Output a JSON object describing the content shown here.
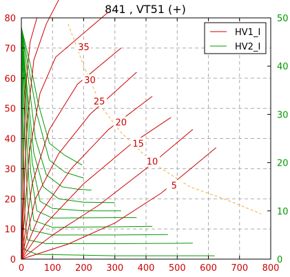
{
  "chart_data": {
    "type": "line",
    "title": "841 , VT51  (+)",
    "xlim": [
      0,
      800
    ],
    "ylim_left": [
      0,
      80
    ],
    "ylim_right": [
      0,
      50
    ],
    "x_ticks": [
      "0",
      "100",
      "200",
      "300",
      "400",
      "500",
      "600",
      "700",
      "800"
    ],
    "y_left_ticks": [
      "0",
      "10",
      "20",
      "30",
      "40",
      "50",
      "60",
      "70",
      "80"
    ],
    "y_right_ticks": [
      "0",
      "10",
      "20",
      "30",
      "40",
      "50"
    ],
    "grid": true,
    "legend_position": "top-right",
    "legend": [
      {
        "label": "HV1_I",
        "color": "#cc0000"
      },
      {
        "label": "HV2_I",
        "color": "#009900"
      }
    ],
    "colors": {
      "hv1": "#cc0000",
      "hv2": "#009900",
      "envelope": "#f0b040",
      "grid": "#aaaaaa"
    },
    "hv1_curves": [
      [
        [
          0,
          0
        ],
        [
          150,
          5
        ],
        [
          300,
          12
        ],
        [
          450,
          22
        ],
        [
          625,
          37
        ]
      ],
      [
        [
          0,
          0
        ],
        [
          100,
          8
        ],
        [
          250,
          18
        ],
        [
          400,
          30
        ],
        [
          550,
          43
        ]
      ],
      [
        [
          0,
          0
        ],
        [
          80,
          12
        ],
        [
          200,
          25
        ],
        [
          350,
          38
        ],
        [
          480,
          47
        ]
      ],
      [
        [
          0,
          0
        ],
        [
          60,
          15
        ],
        [
          160,
          30
        ],
        [
          280,
          43
        ],
        [
          420,
          54
        ]
      ],
      [
        [
          0,
          0
        ],
        [
          45,
          20
        ],
        [
          120,
          35
        ],
        [
          220,
          48
        ],
        [
          370,
          62
        ]
      ],
      [
        [
          0,
          0
        ],
        [
          35,
          25
        ],
        [
          90,
          43
        ],
        [
          180,
          58
        ],
        [
          320,
          70
        ]
      ],
      [
        [
          0,
          0
        ],
        [
          25,
          35
        ],
        [
          60,
          55
        ],
        [
          110,
          67
        ],
        [
          280,
          82
        ]
      ],
      [
        [
          0,
          0
        ],
        [
          18,
          45
        ],
        [
          40,
          66
        ],
        [
          80,
          78
        ],
        [
          120,
          86
        ]
      ],
      [
        [
          0,
          0
        ],
        [
          12,
          55
        ],
        [
          28,
          72
        ],
        [
          50,
          80
        ]
      ]
    ],
    "hv2_curves": [
      [
        [
          0,
          48
        ],
        [
          4,
          20
        ],
        [
          6,
          5
        ],
        [
          10,
          2
        ],
        [
          50,
          1
        ],
        [
          300,
          0.7
        ],
        [
          620,
          0.7
        ]
      ],
      [
        [
          0,
          48
        ],
        [
          8,
          20
        ],
        [
          12,
          8
        ],
        [
          20,
          4
        ],
        [
          80,
          3.2
        ],
        [
          300,
          3.2
        ],
        [
          550,
          3.3
        ]
      ],
      [
        [
          0,
          48
        ],
        [
          12,
          25
        ],
        [
          20,
          12
        ],
        [
          30,
          6
        ],
        [
          100,
          5
        ],
        [
          300,
          5
        ],
        [
          470,
          5.1
        ]
      ],
      [
        [
          0,
          48
        ],
        [
          15,
          28
        ],
        [
          25,
          15
        ],
        [
          40,
          8
        ],
        [
          100,
          6.6
        ],
        [
          300,
          6.7
        ],
        [
          420,
          6.8
        ]
      ],
      [
        [
          0,
          48
        ],
        [
          18,
          30
        ],
        [
          30,
          18
        ],
        [
          50,
          10
        ],
        [
          100,
          8.5
        ],
        [
          300,
          8.6
        ],
        [
          370,
          8.6
        ]
      ],
      [
        [
          0,
          48
        ],
        [
          20,
          32
        ],
        [
          35,
          20
        ],
        [
          60,
          12
        ],
        [
          100,
          10.5
        ],
        [
          200,
          10
        ],
        [
          320,
          10
        ]
      ],
      [
        [
          0,
          48
        ],
        [
          22,
          33
        ],
        [
          40,
          22
        ],
        [
          70,
          15
        ],
        [
          120,
          12.5
        ],
        [
          200,
          11.8
        ],
        [
          300,
          11.7
        ]
      ],
      [
        [
          0,
          48
        ],
        [
          25,
          36
        ],
        [
          45,
          25
        ],
        [
          80,
          17.5
        ],
        [
          130,
          15
        ],
        [
          180,
          14.5
        ],
        [
          225,
          14.3
        ]
      ],
      [
        [
          0,
          48
        ],
        [
          28,
          38
        ],
        [
          50,
          30
        ],
        [
          90,
          20.5
        ],
        [
          140,
          18
        ],
        [
          200,
          16.8
        ]
      ],
      [
        [
          0,
          48
        ],
        [
          30,
          40
        ],
        [
          55,
          32
        ],
        [
          90,
          24
        ],
        [
          140,
          21.5
        ],
        [
          195,
          19.5
        ]
      ]
    ],
    "envelope": [
      [
        150,
        78
      ],
      [
        200,
        64
      ],
      [
        260,
        50
      ],
      [
        320,
        42
      ],
      [
        420,
        32
      ],
      [
        540,
        24
      ],
      [
        650,
        20
      ],
      [
        770,
        15
      ]
    ],
    "iso_labels": [
      {
        "text": "35",
        "x": 200,
        "y": 70
      },
      {
        "text": "30",
        "x": 220,
        "y": 59
      },
      {
        "text": "25",
        "x": 250,
        "y": 52
      },
      {
        "text": "20",
        "x": 320,
        "y": 45
      },
      {
        "text": "15",
        "x": 375,
        "y": 38
      },
      {
        "text": "10",
        "x": 420,
        "y": 32
      },
      {
        "text": "5",
        "x": 490,
        "y": 24
      }
    ]
  }
}
